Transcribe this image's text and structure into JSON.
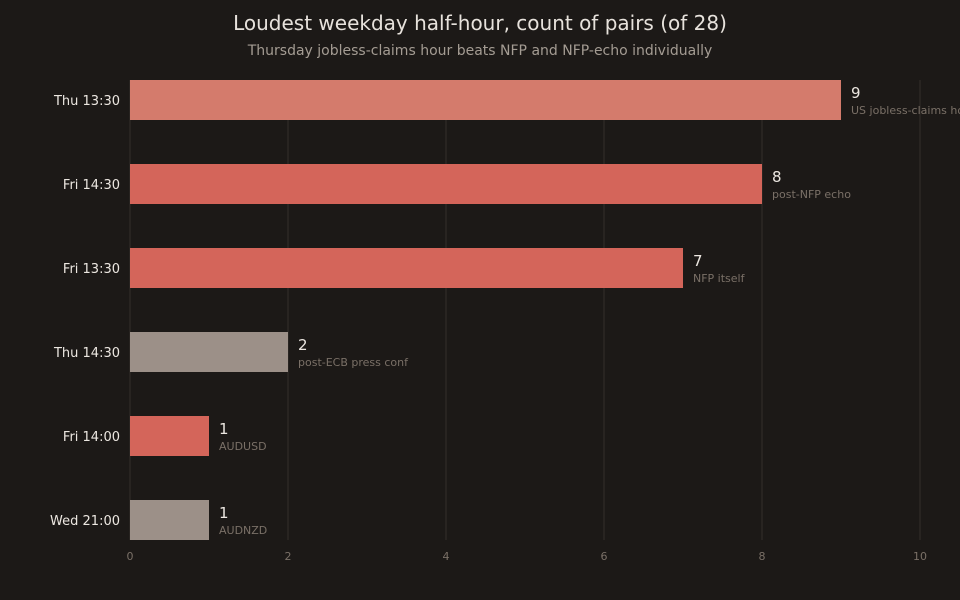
{
  "title": "Loudest weekday half-hour, count of pairs (of 28)",
  "subtitle": "Thursday jobless-claims hour beats NFP and NFP-echo individually",
  "colors": {
    "background": "#1c1917",
    "grid": "#2c2825",
    "highlight": "#d47b6c",
    "accent": "#d4655a",
    "muted": "#9c9088"
  },
  "chart_data": {
    "type": "bar",
    "orientation": "horizontal",
    "title": "Loudest weekday half-hour, count of pairs (of 28)",
    "subtitle": "Thursday jobless-claims hour beats NFP and NFP-echo individually",
    "categories": [
      "Thu 13:30",
      "Fri 14:30",
      "Fri 13:30",
      "Thu 14:30",
      "Fri 14:00",
      "Wed 21:00"
    ],
    "values": [
      9,
      8,
      7,
      2,
      1,
      1
    ],
    "annotations": [
      "US jobless-claims hour",
      "post-NFP echo",
      "NFP itself",
      "post-ECB press conf",
      "AUDUSD",
      "AUDNZD"
    ],
    "bar_colors": [
      "#d47b6c",
      "#d4655a",
      "#d4655a",
      "#9c9088",
      "#d4655a",
      "#9c9088"
    ],
    "xlim": [
      0,
      10
    ],
    "xticks": [
      0,
      2,
      4,
      6,
      8,
      10
    ],
    "grid": "vertical",
    "xlabel": "",
    "ylabel": ""
  }
}
